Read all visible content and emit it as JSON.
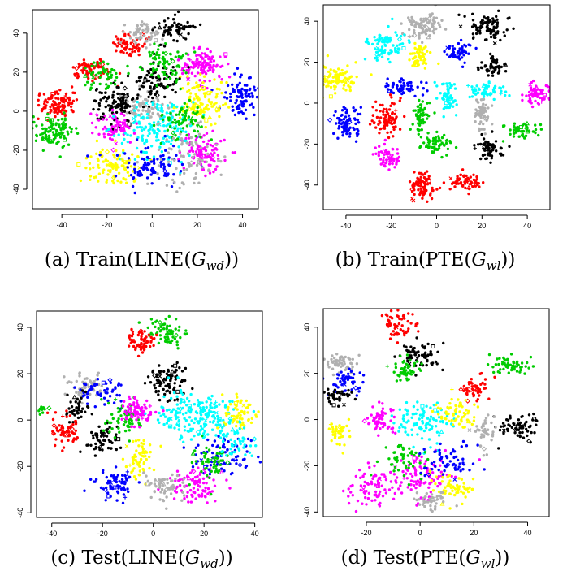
{
  "chart_data": [
    {
      "type": "scatter",
      "id": "a",
      "caption": {
        "prefix": "(a) Train(LINE(",
        "var": "G",
        "sub": "wd",
        "suffix": "))"
      },
      "xticks": [
        -40,
        -20,
        0,
        20,
        40
      ],
      "yticks": [
        40,
        20,
        0,
        -20,
        -40
      ],
      "xlim": [
        -53,
        47
      ],
      "ylim": [
        -50,
        52
      ],
      "grid": false,
      "legend": "none",
      "clusters": [
        {
          "color": "#ff00ff",
          "x": 22,
          "y": 24,
          "sx": 5,
          "sy": 4,
          "n": 120
        },
        {
          "color": "#0000ff",
          "x": 40,
          "y": 7,
          "sx": 4,
          "sy": 5,
          "n": 90
        },
        {
          "color": "#ffff00",
          "x": 22,
          "y": 4,
          "sx": 5,
          "sy": 5,
          "n": 120
        },
        {
          "color": "#ff0000",
          "x": -42,
          "y": 4,
          "sx": 4,
          "sy": 4,
          "n": 100
        },
        {
          "color": "#00cc00",
          "x": -44,
          "y": -10,
          "sx": 5,
          "sy": 4,
          "n": 110
        },
        {
          "color": "#ff0000",
          "x": -27,
          "y": 22,
          "sx": 4,
          "sy": 3,
          "n": 70
        },
        {
          "color": "#000000",
          "x": -16,
          "y": 3,
          "sx": 5,
          "sy": 5,
          "n": 110
        },
        {
          "color": "#b0b0b0",
          "x": -3,
          "y": 2,
          "sx": 5,
          "sy": 4,
          "n": 70
        },
        {
          "color": "#000000",
          "x": 3,
          "y": 15,
          "sx": 5,
          "sy": 4,
          "n": 80
        },
        {
          "color": "#00cc00",
          "x": 6,
          "y": 24,
          "sx": 5,
          "sy": 5,
          "n": 80
        },
        {
          "color": "#ff0000",
          "x": -10,
          "y": 34,
          "sx": 4,
          "sy": 3,
          "n": 60
        },
        {
          "color": "#b0b0b0",
          "x": -4,
          "y": 40,
          "sx": 4,
          "sy": 3,
          "n": 60
        },
        {
          "color": "#000000",
          "x": 10,
          "y": 42,
          "sx": 4,
          "sy": 3,
          "n": 60
        },
        {
          "color": "#ff00ff",
          "x": -18,
          "y": -8,
          "sx": 5,
          "sy": 4,
          "n": 70
        },
        {
          "color": "#00ffff",
          "x": 2,
          "y": -10,
          "sx": 8,
          "sy": 9,
          "n": 160
        },
        {
          "color": "#ffff00",
          "x": -18,
          "y": -28,
          "sx": 6,
          "sy": 5,
          "n": 100
        },
        {
          "color": "#ff00ff",
          "x": 24,
          "y": -22,
          "sx": 5,
          "sy": 5,
          "n": 100
        },
        {
          "color": "#00cc00",
          "x": 14,
          "y": -5,
          "sx": 5,
          "sy": 5,
          "n": 70
        },
        {
          "color": "#0000ff",
          "x": 0,
          "y": -28,
          "sx": 8,
          "sy": 6,
          "n": 90
        },
        {
          "color": "#b0b0b0",
          "x": 15,
          "y": -25,
          "sx": 7,
          "sy": 8,
          "n": 80
        },
        {
          "color": "#00cc00",
          "x": -22,
          "y": 18,
          "sx": 5,
          "sy": 4,
          "n": 50
        }
      ]
    },
    {
      "type": "scatter",
      "id": "b",
      "caption": {
        "prefix": "(b) Train(PTE(",
        "var": "G",
        "sub": "wl",
        "suffix": "))"
      },
      "xticks": [
        -40,
        -20,
        0,
        20,
        40
      ],
      "yticks": [
        40,
        20,
        0,
        -20,
        -40
      ],
      "xlim": [
        -50,
        50
      ],
      "ylim": [
        -52,
        48
      ],
      "grid": false,
      "legend": "none",
      "clusters": [
        {
          "color": "#b0b0b0",
          "x": -6,
          "y": 38,
          "sx": 4,
          "sy": 3,
          "n": 90
        },
        {
          "color": "#000000",
          "x": 23,
          "y": 37,
          "sx": 4,
          "sy": 3,
          "n": 90
        },
        {
          "color": "#00ffff",
          "x": -22,
          "y": 28,
          "sx": 4,
          "sy": 4,
          "n": 90
        },
        {
          "color": "#ffff00",
          "x": -8,
          "y": 22,
          "sx": 3,
          "sy": 3,
          "n": 60
        },
        {
          "color": "#0000ff",
          "x": 10,
          "y": 24,
          "sx": 3,
          "sy": 3,
          "n": 50
        },
        {
          "color": "#000000",
          "x": 25,
          "y": 18,
          "sx": 3,
          "sy": 2,
          "n": 50
        },
        {
          "color": "#ffff00",
          "x": -44,
          "y": 12,
          "sx": 4,
          "sy": 3,
          "n": 90
        },
        {
          "color": "#0000ff",
          "x": -15,
          "y": 8,
          "sx": 4,
          "sy": 2,
          "n": 60
        },
        {
          "color": "#00ffff",
          "x": 5,
          "y": 3,
          "sx": 2,
          "sy": 4,
          "n": 60
        },
        {
          "color": "#00ffff",
          "x": 22,
          "y": 6,
          "sx": 4,
          "sy": 2,
          "n": 60
        },
        {
          "color": "#ff00ff",
          "x": 45,
          "y": 4,
          "sx": 3,
          "sy": 3,
          "n": 70
        },
        {
          "color": "#0000ff",
          "x": -40,
          "y": -10,
          "sx": 3,
          "sy": 4,
          "n": 90
        },
        {
          "color": "#ff0000",
          "x": -22,
          "y": -8,
          "sx": 3,
          "sy": 4,
          "n": 80
        },
        {
          "color": "#00cc00",
          "x": -7,
          "y": -6,
          "sx": 2,
          "sy": 4,
          "n": 60
        },
        {
          "color": "#b0b0b0",
          "x": 20,
          "y": -5,
          "sx": 2,
          "sy": 4,
          "n": 60
        },
        {
          "color": "#00cc00",
          "x": 38,
          "y": -13,
          "sx": 4,
          "sy": 2,
          "n": 50
        },
        {
          "color": "#ff00ff",
          "x": -22,
          "y": -26,
          "sx": 3,
          "sy": 3,
          "n": 60
        },
        {
          "color": "#00cc00",
          "x": 0,
          "y": -20,
          "sx": 4,
          "sy": 3,
          "n": 60
        },
        {
          "color": "#000000",
          "x": 23,
          "y": -22,
          "sx": 3,
          "sy": 3,
          "n": 70
        },
        {
          "color": "#ff0000",
          "x": -7,
          "y": -40,
          "sx": 3,
          "sy": 4,
          "n": 80
        },
        {
          "color": "#ff0000",
          "x": 13,
          "y": -38,
          "sx": 4,
          "sy": 2,
          "n": 60
        }
      ]
    },
    {
      "type": "scatter",
      "id": "c",
      "caption": {
        "prefix": "(c) Test(LINE(",
        "var": "G",
        "sub": "wd",
        "suffix": "))"
      },
      "xticks": [
        -40,
        -20,
        0,
        20,
        40
      ],
      "yticks": [
        40,
        20,
        0,
        -20,
        -40
      ],
      "xlim": [
        -46,
        43
      ],
      "ylim": [
        -42,
        47
      ],
      "grid": false,
      "legend": "none",
      "clusters": [
        {
          "color": "#00cc00",
          "x": 5,
          "y": 38,
          "sx": 4,
          "sy": 3,
          "n": 70
        },
        {
          "color": "#ff0000",
          "x": -5,
          "y": 34,
          "sx": 3,
          "sy": 3,
          "n": 60
        },
        {
          "color": "#000000",
          "x": 6,
          "y": 17,
          "sx": 4,
          "sy": 4,
          "n": 90
        },
        {
          "color": "#b0b0b0",
          "x": -27,
          "y": 15,
          "sx": 4,
          "sy": 3,
          "n": 60
        },
        {
          "color": "#0000ff",
          "x": -20,
          "y": 12,
          "sx": 4,
          "sy": 3,
          "n": 50
        },
        {
          "color": "#00cc00",
          "x": -44,
          "y": 5,
          "sx": 1,
          "sy": 1,
          "n": 10
        },
        {
          "color": "#000000",
          "x": -30,
          "y": 5,
          "sx": 3,
          "sy": 3,
          "n": 40
        },
        {
          "color": "#ff0000",
          "x": -34,
          "y": -5,
          "sx": 3,
          "sy": 4,
          "n": 60
        },
        {
          "color": "#000000",
          "x": -20,
          "y": -8,
          "sx": 4,
          "sy": 3,
          "n": 60
        },
        {
          "color": "#00cc00",
          "x": -12,
          "y": 0,
          "sx": 4,
          "sy": 4,
          "n": 60
        },
        {
          "color": "#ff00ff",
          "x": -6,
          "y": 4,
          "sx": 3,
          "sy": 3,
          "n": 70
        },
        {
          "color": "#00ffff",
          "x": 12,
          "y": 2,
          "sx": 6,
          "sy": 5,
          "n": 100
        },
        {
          "color": "#00ffff",
          "x": 23,
          "y": 0,
          "sx": 5,
          "sy": 5,
          "n": 90
        },
        {
          "color": "#ffff00",
          "x": 34,
          "y": 3,
          "sx": 3,
          "sy": 4,
          "n": 60
        },
        {
          "color": "#ffff00",
          "x": -5,
          "y": -16,
          "sx": 3,
          "sy": 4,
          "n": 60
        },
        {
          "color": "#0000ff",
          "x": -15,
          "y": -28,
          "sx": 4,
          "sy": 3,
          "n": 70
        },
        {
          "color": "#0000ff",
          "x": 27,
          "y": -15,
          "sx": 6,
          "sy": 5,
          "n": 80
        },
        {
          "color": "#ff00ff",
          "x": 16,
          "y": -28,
          "sx": 5,
          "sy": 4,
          "n": 90
        },
        {
          "color": "#b0b0b0",
          "x": 5,
          "y": -28,
          "sx": 5,
          "sy": 3,
          "n": 60
        },
        {
          "color": "#00cc00",
          "x": 22,
          "y": -18,
          "sx": 4,
          "sy": 4,
          "n": 50
        },
        {
          "color": "#00ffff",
          "x": 32,
          "y": -10,
          "sx": 4,
          "sy": 4,
          "n": 50
        }
      ]
    },
    {
      "type": "scatter",
      "id": "d",
      "caption": {
        "prefix": "(d) Test(PTE(",
        "var": "G",
        "sub": "wl",
        "suffix": "))"
      },
      "xticks": [
        -20,
        0,
        20,
        40
      ],
      "yticks": [
        40,
        20,
        0,
        -20,
        -40
      ],
      "xlim": [
        -36,
        48
      ],
      "ylim": [
        -42,
        48
      ],
      "grid": false,
      "legend": "none",
      "clusters": [
        {
          "color": "#ff0000",
          "x": -8,
          "y": 41,
          "sx": 3,
          "sy": 3,
          "n": 60
        },
        {
          "color": "#b0b0b0",
          "x": -30,
          "y": 25,
          "sx": 3,
          "sy": 2,
          "n": 50
        },
        {
          "color": "#000000",
          "x": 0,
          "y": 28,
          "sx": 4,
          "sy": 3,
          "n": 70
        },
        {
          "color": "#00cc00",
          "x": -5,
          "y": 22,
          "sx": 3,
          "sy": 3,
          "n": 50
        },
        {
          "color": "#00cc00",
          "x": 33,
          "y": 24,
          "sx": 4,
          "sy": 2,
          "n": 60
        },
        {
          "color": "#0000ff",
          "x": -27,
          "y": 16,
          "sx": 3,
          "sy": 3,
          "n": 50
        },
        {
          "color": "#000000",
          "x": -31,
          "y": 10,
          "sx": 3,
          "sy": 2,
          "n": 40
        },
        {
          "color": "#ff0000",
          "x": 20,
          "y": 14,
          "sx": 3,
          "sy": 3,
          "n": 50
        },
        {
          "color": "#000000",
          "x": 37,
          "y": -3,
          "sx": 4,
          "sy": 3,
          "n": 70
        },
        {
          "color": "#ffff00",
          "x": -31,
          "y": -5,
          "sx": 2,
          "sy": 3,
          "n": 40
        },
        {
          "color": "#ff00ff",
          "x": -15,
          "y": 0,
          "sx": 3,
          "sy": 3,
          "n": 60
        },
        {
          "color": "#00ffff",
          "x": 2,
          "y": -2,
          "sx": 6,
          "sy": 5,
          "n": 100
        },
        {
          "color": "#ffff00",
          "x": 14,
          "y": 2,
          "sx": 4,
          "sy": 4,
          "n": 60
        },
        {
          "color": "#b0b0b0",
          "x": 24,
          "y": -5,
          "sx": 2,
          "sy": 4,
          "n": 40
        },
        {
          "color": "#ff00ff",
          "x": -17,
          "y": -28,
          "sx": 5,
          "sy": 4,
          "n": 80
        },
        {
          "color": "#ff00ff",
          "x": 0,
          "y": -25,
          "sx": 6,
          "sy": 5,
          "n": 90
        },
        {
          "color": "#ffff00",
          "x": 12,
          "y": -30,
          "sx": 4,
          "sy": 3,
          "n": 60
        },
        {
          "color": "#00cc00",
          "x": -6,
          "y": -18,
          "sx": 4,
          "sy": 4,
          "n": 50
        },
        {
          "color": "#0000ff",
          "x": 10,
          "y": -18,
          "sx": 5,
          "sy": 4,
          "n": 60
        },
        {
          "color": "#b0b0b0",
          "x": 5,
          "y": -35,
          "sx": 4,
          "sy": 2,
          "n": 40
        }
      ]
    }
  ]
}
